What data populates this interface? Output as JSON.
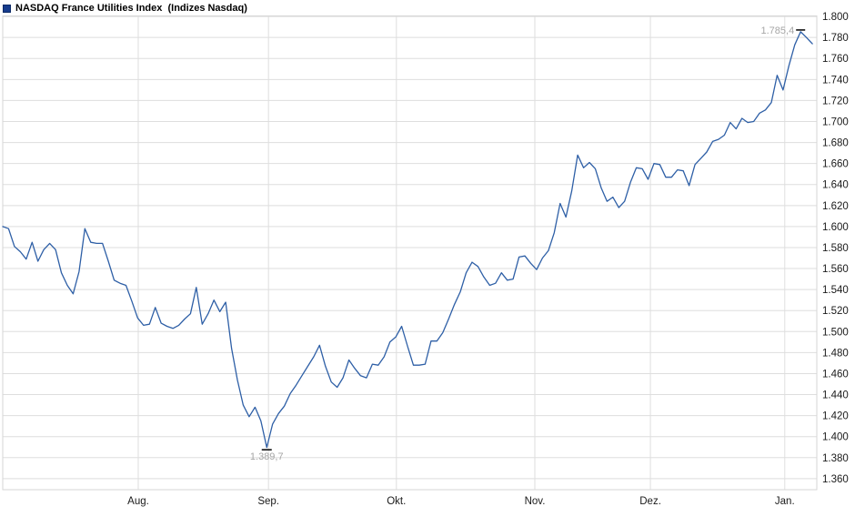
{
  "header": {
    "title": "NASDAQ France Utilities Index  (Indizes Nasdaq)",
    "legend_color": "#173c8d"
  },
  "chart_data": {
    "type": "line",
    "title": "NASDAQ France Utilities Index (Indizes Nasdaq)",
    "line_color": "#2e5fa6",
    "grid": true,
    "grid_color": "#dedede",
    "border_color": "#d6d6d6",
    "axis_text_color": "#1a1a1a",
    "annotation_text_color": "#a6a6a6",
    "legend_position": "top-left",
    "ylim": [
      1349.5,
      1800.5
    ],
    "y_ticks": {
      "values": [
        1800,
        1780,
        1760,
        1740,
        1720,
        1700,
        1680,
        1660,
        1640,
        1620,
        1600,
        1580,
        1560,
        1540,
        1520,
        1500,
        1480,
        1460,
        1440,
        1420,
        1400,
        1380,
        1360
      ],
      "labels": [
        "1.800",
        "1.780",
        "1.760",
        "1.740",
        "1.720",
        "1.700",
        "1.680",
        "1.660",
        "1.640",
        "1.620",
        "1.600",
        "1.580",
        "1.560",
        "1.540",
        "1.520",
        "1.500",
        "1.480",
        "1.460",
        "1.440",
        "1.420",
        "1.400",
        "1.380",
        "1.360"
      ]
    },
    "x_ticks": [
      {
        "label": "Aug.",
        "index": 23.1
      },
      {
        "label": "Sep.",
        "index": 45.3
      },
      {
        "label": "Okt.",
        "index": 67.1
      },
      {
        "label": "Nov.",
        "index": 90.7
      },
      {
        "label": "Dez.",
        "index": 110.4
      },
      {
        "label": "Jan.",
        "index": 133.3
      }
    ],
    "annotations": [
      {
        "type": "high",
        "label": "1.785,4",
        "value": 1785.4,
        "index": 136
      },
      {
        "type": "low",
        "label": "1.389,7",
        "value": 1389.7,
        "index": 45
      }
    ],
    "series": [
      {
        "name": "NASDAQ France Utilities Index",
        "values": [
          1600,
          1598,
          1581,
          1576,
          1569,
          1585,
          1567,
          1578,
          1584,
          1578,
          1556,
          1544,
          1536,
          1557,
          1598,
          1585,
          1584,
          1584,
          1567,
          1549,
          1546,
          1544,
          1529,
          1513,
          1506,
          1507,
          1523,
          1508,
          1505,
          1503,
          1506,
          1512,
          1517,
          1542,
          1507,
          1517,
          1530,
          1519,
          1528,
          1484,
          1454,
          1430,
          1419,
          1428,
          1415,
          1389.7,
          1412,
          1422,
          1429,
          1441,
          1449,
          1458,
          1467,
          1476,
          1487,
          1467,
          1452,
          1447,
          1456,
          1473,
          1465,
          1458,
          1456,
          1469,
          1468,
          1476,
          1490,
          1495,
          1505,
          1486,
          1468,
          1468,
          1469,
          1491,
          1491,
          1499,
          1512,
          1526,
          1538,
          1556,
          1566,
          1562,
          1552,
          1544,
          1546,
          1556,
          1549,
          1550,
          1571,
          1572,
          1565,
          1559,
          1570,
          1577,
          1594,
          1622,
          1609,
          1634,
          1668,
          1656,
          1661,
          1655,
          1637,
          1624,
          1628,
          1618,
          1624,
          1642,
          1656,
          1655,
          1645,
          1660,
          1659,
          1647,
          1647,
          1654,
          1653,
          1639,
          1659,
          1665,
          1671,
          1681,
          1683,
          1687,
          1699,
          1693,
          1703,
          1699,
          1700,
          1708,
          1711,
          1718,
          1744,
          1730,
          1753,
          1773,
          1785.4,
          1780,
          1774
        ]
      }
    ]
  }
}
